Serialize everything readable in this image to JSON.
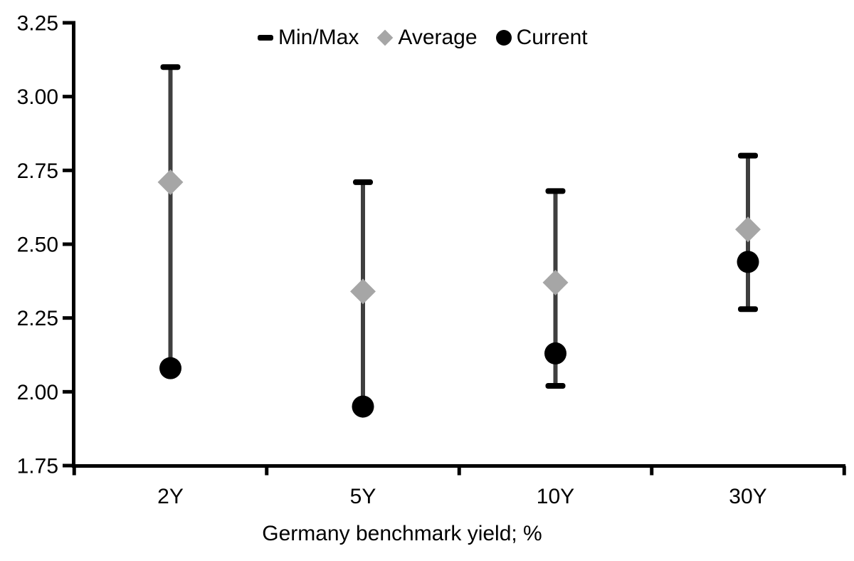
{
  "chart_data": {
    "type": "error-bar-with-markers",
    "title": "",
    "xlabel": "Germany benchmark yield; %",
    "ylabel": "",
    "categories": [
      "2Y",
      "5Y",
      "10Y",
      "30Y"
    ],
    "series": [
      {
        "name": "Min/Max",
        "type": "range",
        "marker": "dash",
        "min": [
          2.08,
          1.95,
          2.02,
          2.28
        ],
        "max": [
          3.1,
          2.71,
          2.68,
          2.8
        ]
      },
      {
        "name": "Average",
        "type": "point",
        "marker": "diamond",
        "values": [
          2.71,
          2.34,
          2.37,
          2.55
        ]
      },
      {
        "name": "Current",
        "type": "point",
        "marker": "circle",
        "values": [
          2.08,
          1.95,
          2.13,
          2.44
        ]
      }
    ],
    "y_axis": {
      "min": 1.75,
      "max": 3.25,
      "step": 0.25,
      "tick_labels": [
        "1.75",
        "2.00",
        "2.25",
        "2.50",
        "2.75",
        "3.00",
        "3.25"
      ]
    },
    "x_axis": {
      "tick_labels": [
        "2Y",
        "5Y",
        "10Y",
        "30Y"
      ]
    },
    "legend": {
      "position": "top-center",
      "items": [
        {
          "label": "Min/Max",
          "marker": "dash"
        },
        {
          "label": "Average",
          "marker": "diamond"
        },
        {
          "label": "Current",
          "marker": "circle"
        }
      ]
    },
    "grid": false,
    "colors": {
      "background": "#ffffff",
      "axis": "#000000",
      "error_bar_line": "#3f3f3f",
      "cap": "#000000",
      "average_marker": "#a6a6a6",
      "current_marker": "#000000",
      "text": "#000000"
    }
  }
}
